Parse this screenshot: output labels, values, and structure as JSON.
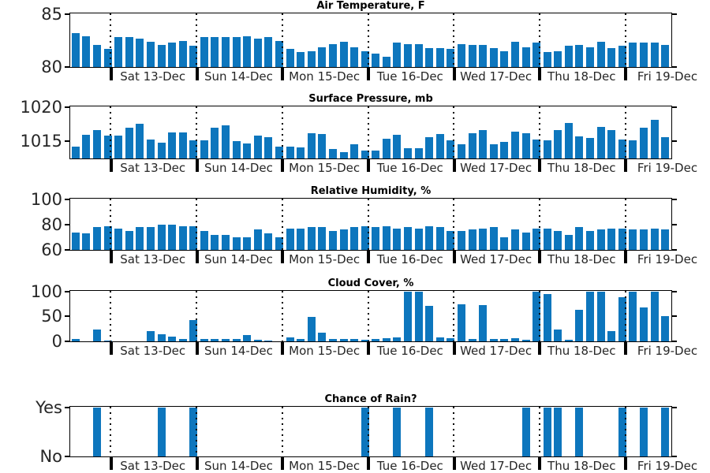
{
  "figure": {
    "background": "#ffffff",
    "bar_color": "#0d76bd",
    "axis_color": "#000000",
    "tick_label_color": "#262626",
    "grid_style": "vertical dotted day separators"
  },
  "x_axis": {
    "slot_count": 56,
    "interval": "3-hourly forecast bars",
    "day_labels": [
      "Sat 13-Dec",
      "Sun 14-Dec",
      "Mon 15-Dec",
      "Tue 16-Dec",
      "Wed 17-Dec",
      "Thu 18-Dec",
      "Fri 19-Dec"
    ],
    "boundary_slots": [
      3.78,
      11.78,
      19.78,
      27.78,
      35.78,
      43.78,
      51.78
    ]
  },
  "chart_data": [
    {
      "type": "bar",
      "title": "Air Temperature, F",
      "ylim": [
        80,
        85
      ],
      "yticks": [
        {
          "v": 85,
          "label": "85"
        },
        {
          "v": 80,
          "label": "80"
        }
      ],
      "values": [
        83.2,
        82.9,
        82.1,
        81.7,
        82.8,
        82.8,
        82.7,
        82.4,
        82.1,
        82.3,
        82.5,
        82.0,
        82.8,
        82.8,
        82.8,
        82.8,
        82.9,
        82.7,
        82.8,
        82.5,
        81.7,
        81.4,
        81.5,
        81.9,
        82.2,
        82.4,
        81.9,
        81.5,
        81.3,
        81.0,
        82.3,
        82.2,
        82.2,
        81.8,
        81.8,
        81.7,
        82.2,
        82.1,
        82.1,
        81.8,
        81.5,
        82.4,
        81.9,
        82.3,
        81.4,
        81.5,
        82.0,
        82.1,
        81.9,
        82.4,
        81.8,
        82.0,
        82.3,
        82.3,
        82.3,
        82.1
      ]
    },
    {
      "type": "bar",
      "title": "Surface Pressure, mb",
      "ylim": [
        1012.5,
        1020
      ],
      "yticks": [
        {
          "v": 1020,
          "label": "1020"
        },
        {
          "v": 1015,
          "label": "1015"
        }
      ],
      "values": [
        1014.2,
        1016.0,
        1016.6,
        1015.8,
        1015.9,
        1017.0,
        1017.6,
        1015.3,
        1014.8,
        1016.3,
        1016.3,
        1015.1,
        1015.2,
        1017.0,
        1017.4,
        1015.0,
        1014.7,
        1015.9,
        1015.6,
        1014.2,
        1014.2,
        1014.1,
        1016.2,
        1016.1,
        1013.9,
        1013.4,
        1014.6,
        1013.7,
        1013.6,
        1015.4,
        1016.0,
        1014.0,
        1014.0,
        1015.6,
        1016.1,
        1015.2,
        1014.6,
        1016.2,
        1016.6,
        1014.6,
        1014.9,
        1016.4,
        1016.2,
        1015.3,
        1015.1,
        1016.6,
        1017.7,
        1015.7,
        1015.5,
        1017.1,
        1016.6,
        1015.3,
        1015.2,
        1017.0,
        1018.1,
        1015.6
      ]
    },
    {
      "type": "bar",
      "title": "Relative Humidity, %",
      "ylim": [
        60,
        100
      ],
      "yticks": [
        {
          "v": 100,
          "label": "100"
        },
        {
          "v": 80,
          "label": "80"
        },
        {
          "v": 60,
          "label": "60"
        }
      ],
      "values": [
        74,
        73,
        78,
        79,
        77,
        75,
        78,
        78,
        80,
        80,
        79,
        79,
        75,
        72,
        72,
        70,
        70,
        76,
        73,
        70,
        77,
        77,
        78,
        78,
        75,
        76,
        78,
        79,
        78,
        79,
        77,
        78,
        77,
        79,
        78,
        75,
        75,
        76,
        77,
        78,
        70,
        76,
        74,
        77,
        77,
        75,
        72,
        78,
        75,
        76,
        77,
        77,
        76,
        76,
        77,
        76
      ]
    },
    {
      "type": "bar",
      "title": "Cloud Cover, %",
      "ylim": [
        0,
        100
      ],
      "yticks": [
        {
          "v": 100,
          "label": "100"
        },
        {
          "v": 50,
          "label": "50"
        },
        {
          "v": 0,
          "label": "0"
        }
      ],
      "values": [
        5,
        0,
        24,
        2,
        0,
        0,
        0,
        21,
        15,
        9,
        5,
        43,
        5,
        4,
        4,
        4,
        13,
        3,
        2,
        0,
        8,
        5,
        50,
        17,
        5,
        5,
        4,
        3,
        4,
        6,
        8,
        100,
        100,
        72,
        8,
        7,
        74,
        4,
        73,
        5,
        4,
        6,
        3,
        100,
        95,
        24,
        3,
        64,
        100,
        100,
        20,
        89,
        100,
        69,
        100,
        51
      ]
    },
    {
      "type": "bar",
      "title": "Chance of Rain?",
      "ylim": [
        0,
        1
      ],
      "yticks": [
        {
          "v": 1,
          "label": "Yes"
        },
        {
          "v": 0,
          "label": "No"
        }
      ],
      "values": [
        0,
        0,
        1,
        0,
        0,
        0,
        0,
        0,
        1,
        0,
        0,
        1,
        0,
        0,
        0,
        0,
        0,
        0,
        0,
        0,
        0,
        0,
        0,
        0,
        0,
        0,
        0,
        1,
        0,
        0,
        1,
        0,
        0,
        1,
        0,
        0,
        0,
        0,
        0,
        0,
        0,
        0,
        1,
        0,
        1,
        1,
        0,
        1,
        0,
        0,
        0,
        1,
        0,
        1,
        0,
        1
      ]
    }
  ]
}
